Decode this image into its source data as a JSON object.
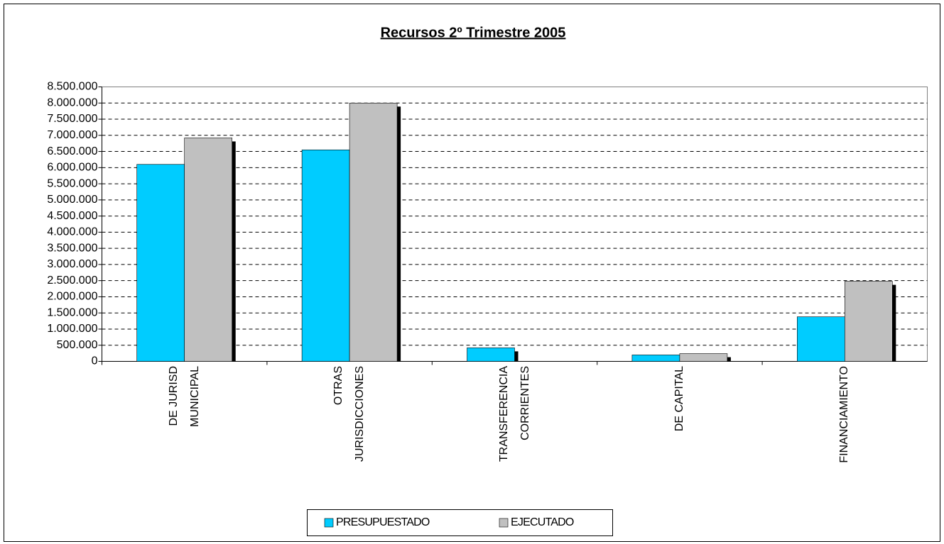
{
  "chart_data": {
    "type": "bar",
    "title": "Recursos 2º Trimestre 2005",
    "categories": [
      "DE JURISD\nMUNICIPAL",
      "OTRAS\nJURISDICCIONES",
      "TRANSFERENCIA\nCORRIENTES",
      "DE CAPITAL",
      "FINANCIAMIENTO"
    ],
    "series": [
      {
        "name": "PRESUPUESTADO",
        "color": "#00ccff",
        "values": [
          6100000,
          6550000,
          420000,
          200000,
          1380000
        ]
      },
      {
        "name": "EJECUTADO",
        "color": "#c0c0c0",
        "values": [
          6920000,
          8000000,
          0,
          240000,
          2480000
        ]
      }
    ],
    "ylim": [
      0,
      8500000
    ],
    "yticks": [
      0,
      {
        "value": 500000,
        "label": "500.000"
      },
      {
        "value": 1000000,
        "label": "1.000.000"
      },
      {
        "value": 1500000,
        "label": "1.500.000"
      },
      {
        "value": 2000000,
        "label": "2.000.000"
      },
      {
        "value": 2500000,
        "label": "2.500.000"
      },
      {
        "value": 3000000,
        "label": "3.000.000"
      },
      {
        "value": 3500000,
        "label": "3.500.000"
      },
      {
        "value": 4000000,
        "label": "4.000.000"
      },
      {
        "value": 4500000,
        "label": "4.500.000"
      },
      {
        "value": 5000000,
        "label": "5.000.000"
      },
      {
        "value": 5500000,
        "label": "5.500.000"
      },
      {
        "value": 6000000,
        "label": "6.000.000"
      },
      {
        "value": 6500000,
        "label": "6.500.000"
      },
      {
        "value": 7000000,
        "label": "7.000.000"
      },
      {
        "value": 7500000,
        "label": "7.500.000"
      },
      {
        "value": 8000000,
        "label": "8.000.000"
      },
      {
        "value": 8500000,
        "label": "8.500.000"
      }
    ],
    "grid": true,
    "legend": "bottom"
  }
}
